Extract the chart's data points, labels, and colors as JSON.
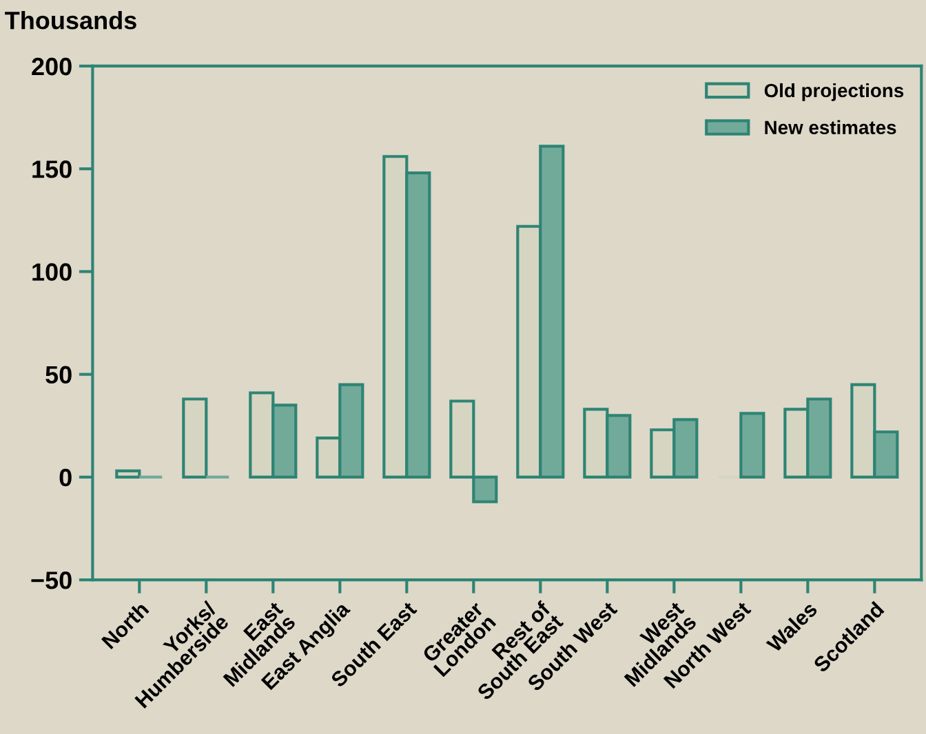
{
  "chart_data": {
    "type": "bar",
    "ylabel": "Thousands",
    "categories": [
      "North",
      "Yorks/\nHumberside",
      "East\nMidlands",
      "East Anglia",
      "South East",
      "Greater\nLondon",
      "Rest of\nSouth East",
      "South West",
      "West\nMidlands",
      "North West",
      "Wales",
      "Scotland"
    ],
    "series": [
      {
        "name": "Old projections",
        "color": "#d6d5c2",
        "values": [
          3,
          38,
          41,
          19,
          156,
          37,
          122,
          33,
          23,
          0,
          33,
          45
        ]
      },
      {
        "name": "New estimates",
        "color": "#72aa9a",
        "values": [
          0,
          0,
          35,
          45,
          148,
          -12,
          161,
          30,
          28,
          31,
          38,
          22
        ]
      }
    ],
    "ylim": [
      -50,
      200
    ],
    "yticks": [
      -50,
      0,
      50,
      100,
      150,
      200
    ],
    "grid": false,
    "legend": "top right"
  }
}
